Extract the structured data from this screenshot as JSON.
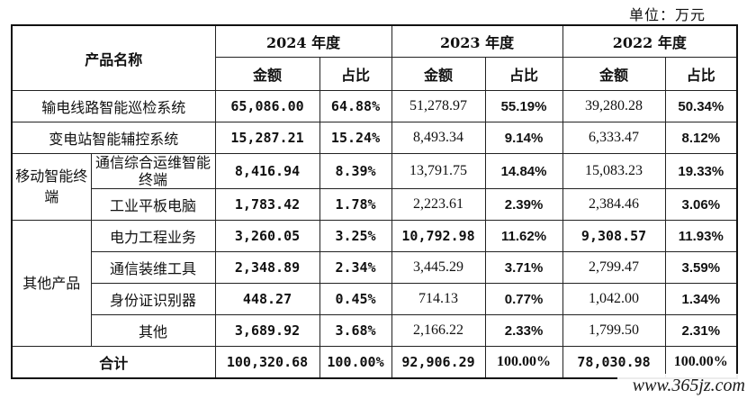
{
  "unit_label": "单位：万元",
  "header": {
    "product_name": "产品名称",
    "years": [
      "2024 年度",
      "2023 年度",
      "2022 年度"
    ],
    "amount": "金额",
    "ratio": "占比"
  },
  "rows": {
    "r1": {
      "product": "输电线路智能巡检系统",
      "y2024_amount": "65,086.00",
      "y2024_ratio": "64.88%",
      "y2023_amount": "51,278.97",
      "y2023_ratio": "55.19%",
      "y2022_amount": "39,280.28",
      "y2022_ratio": "50.34%"
    },
    "r2": {
      "product": "变电站智能辅控系统",
      "y2024_amount": "15,287.21",
      "y2024_ratio": "15.24%",
      "y2023_amount": "8,493.34",
      "y2023_ratio": "9.14%",
      "y2022_amount": "6,333.47",
      "y2022_ratio": "8.12%"
    },
    "r3": {
      "category": "移动智能终端",
      "product": "通信综合运维智能终端",
      "y2024_amount": "8,416.94",
      "y2024_ratio": "8.39%",
      "y2023_amount": "13,791.75",
      "y2023_ratio": "14.84%",
      "y2022_amount": "15,083.23",
      "y2022_ratio": "19.33%"
    },
    "r4": {
      "product": "工业平板电脑",
      "y2024_amount": "1,783.42",
      "y2024_ratio": "1.78%",
      "y2023_amount": "2,223.61",
      "y2023_ratio": "2.39%",
      "y2022_amount": "2,384.46",
      "y2022_ratio": "3.06%"
    },
    "r5": {
      "category": "其他产品",
      "product": "电力工程业务",
      "y2024_amount": "3,260.05",
      "y2024_ratio": "3.25%",
      "y2023_amount": "10,792.98",
      "y2023_ratio": "11.62%",
      "y2022_amount": "9,308.57",
      "y2022_ratio": "11.93%"
    },
    "r6": {
      "product": "通信装维工具",
      "y2024_amount": "2,348.89",
      "y2024_ratio": "2.34%",
      "y2023_amount": "3,445.29",
      "y2023_ratio": "3.71%",
      "y2022_amount": "2,799.47",
      "y2022_ratio": "3.59%"
    },
    "r7": {
      "product": "身份证识别器",
      "y2024_amount": "448.27",
      "y2024_ratio": "0.45%",
      "y2023_amount": "714.13",
      "y2023_ratio": "0.77%",
      "y2022_amount": "1,042.00",
      "y2022_ratio": "1.34%"
    },
    "r8": {
      "product": "其他",
      "y2024_amount": "3,689.92",
      "y2024_ratio": "3.68%",
      "y2023_amount": "2,166.22",
      "y2023_ratio": "2.33%",
      "y2022_amount": "1,799.50",
      "y2022_ratio": "2.31%"
    }
  },
  "total": {
    "label": "合计",
    "y2024_amount": "100,320.68",
    "y2024_ratio": "100.00%",
    "y2023_amount": "92,906.29",
    "y2023_ratio": "100.00%",
    "y2022_amount": "78,030.98",
    "y2022_ratio": "100.00%"
  },
  "watermark": "www.365jz.com"
}
